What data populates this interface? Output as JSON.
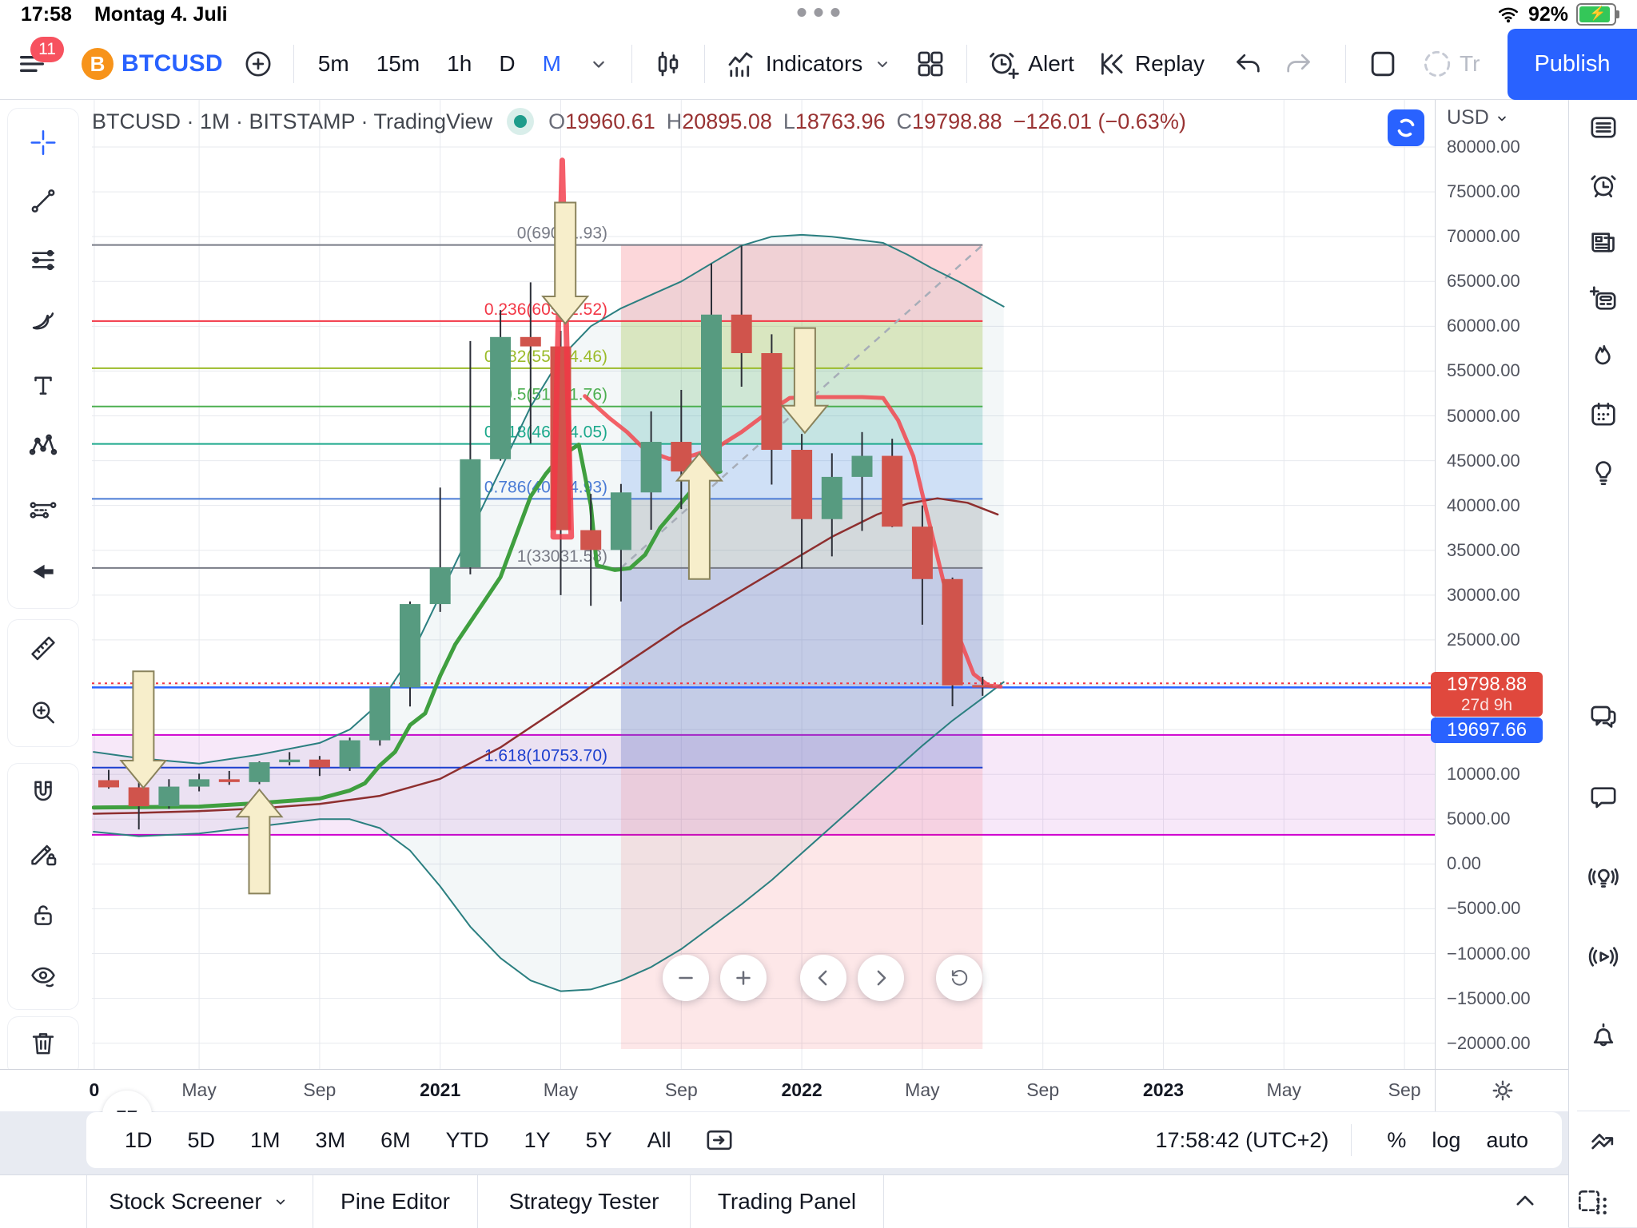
{
  "status_bar": {
    "time": "17:58",
    "date": "Montag 4. Juli",
    "battery_pct": "92%"
  },
  "toolbar": {
    "menu_badge": "11",
    "symbol": {
      "icon": "bitcoin",
      "label": "BTCUSD"
    },
    "timeframes": [
      "5m",
      "15m",
      "1h",
      "D",
      "M"
    ],
    "active_timeframe": "M",
    "indicators_label": "Indicators",
    "alert_label": "Alert",
    "replay_label": "Replay",
    "trade_label": "Tr",
    "publish_label": "Publish"
  },
  "chart_header": {
    "title": "BTCUSD · 1M · BITSTAMP · TradingView",
    "ohlc": {
      "o_label": "O",
      "o": "19960.61",
      "h_label": "H",
      "h": "20895.08",
      "l_label": "L",
      "l": "18763.96",
      "c_label": "C",
      "c": "19798.88",
      "change": "−126.01 (−0.63%)"
    }
  },
  "left_toolbar": {
    "groups": [
      [
        "crosshair",
        "trendline",
        "fiblines",
        "brush",
        "text",
        "xabcd",
        "position",
        "arrowmark"
      ],
      [
        "ruler",
        "zoomin"
      ],
      [
        "magnet",
        "pencil-lock",
        "lock",
        "eye-hide"
      ],
      [
        "trash"
      ]
    ]
  },
  "right_sidebar": {
    "group1": [
      "watchlist",
      "alarm",
      "news",
      "notes",
      "flame",
      "calendar",
      "bulb"
    ],
    "group2": [
      "chat-duo",
      "chat",
      "bulb-waves",
      "play-waves",
      "bell"
    ],
    "bottom_icon": "zigzag",
    "corner_icon": "apps"
  },
  "price_axis": {
    "currency": "USD",
    "ticks": [
      {
        "label": "80000.00",
        "price": 80000
      },
      {
        "label": "75000.00",
        "price": 75000
      },
      {
        "label": "70000.00",
        "price": 70000
      },
      {
        "label": "65000.00",
        "price": 65000
      },
      {
        "label": "60000.00",
        "price": 60000
      },
      {
        "label": "55000.00",
        "price": 55000
      },
      {
        "label": "50000.00",
        "price": 50000
      },
      {
        "label": "45000.00",
        "price": 45000
      },
      {
        "label": "40000.00",
        "price": 40000
      },
      {
        "label": "35000.00",
        "price": 35000
      },
      {
        "label": "30000.00",
        "price": 30000
      },
      {
        "label": "25000.00",
        "price": 25000
      },
      {
        "label": "10000.00",
        "price": 10000
      },
      {
        "label": "5000.00",
        "price": 5000
      },
      {
        "label": "0.00",
        "price": 0
      },
      {
        "label": "−5000.00",
        "price": -5000
      },
      {
        "label": "−10000.00",
        "price": -10000
      },
      {
        "label": "−15000.00",
        "price": -15000
      },
      {
        "label": "−20000.00",
        "price": -20000
      }
    ],
    "countdown_label": {
      "price": "19798.88",
      "countdown": "27d 9h",
      "bg": "#e0483d"
    },
    "alert_label": {
      "price": "19697.66",
      "bg": "#2962ff"
    }
  },
  "time_axis": {
    "ticks": [
      {
        "label": "0",
        "i": -0.48,
        "bold": true
      },
      {
        "label": "May",
        "i": 3
      },
      {
        "label": "Sep",
        "i": 7
      },
      {
        "label": "2021",
        "i": 11,
        "bold": true
      },
      {
        "label": "May",
        "i": 15
      },
      {
        "label": "Sep",
        "i": 19
      },
      {
        "label": "2022",
        "i": 23,
        "bold": true
      },
      {
        "label": "May",
        "i": 27
      },
      {
        "label": "Sep",
        "i": 31
      },
      {
        "label": "2023",
        "i": 35,
        "bold": true
      },
      {
        "label": "May",
        "i": 39
      },
      {
        "label": "Sep",
        "i": 43
      }
    ]
  },
  "range_toolbar": {
    "ranges": [
      "1D",
      "5D",
      "1M",
      "3M",
      "6M",
      "YTD",
      "1Y",
      "5Y",
      "All"
    ],
    "clock": "17:58:42 (UTC+2)",
    "scale_modes": [
      "%",
      "log",
      "auto"
    ]
  },
  "bottom_tabs": {
    "tabs": [
      "Stock Screener",
      "Pine Editor",
      "Strategy Tester",
      "Trading Panel"
    ],
    "widths": [
      282,
      205,
      265,
      241
    ]
  },
  "nav_controls": [
    "minus",
    "plusg",
    "chevL",
    "chevR",
    "reset"
  ],
  "chart_data": {
    "type": "candlestick",
    "symbol": "BTCUSD",
    "interval": "1M",
    "exchange": "BITSTAMP",
    "ylim": [
      -22800,
      85300
    ],
    "grid": {
      "h_step": 5000,
      "h_min": -20000,
      "h_max": 80000
    },
    "months": [
      "2020-02",
      "2020-03",
      "2020-04",
      "2020-05",
      "2020-06",
      "2020-07",
      "2020-08",
      "2020-09",
      "2020-10",
      "2020-11",
      "2020-12",
      "2021-01",
      "2021-02",
      "2021-03",
      "2021-04",
      "2021-05",
      "2021-06",
      "2021-07",
      "2021-08",
      "2021-09",
      "2021-10",
      "2021-11",
      "2021-12",
      "2022-01",
      "2022-02",
      "2022-03",
      "2022-04",
      "2022-05",
      "2022-06",
      "2022-07"
    ],
    "candles": [
      [
        9350,
        10500,
        8400,
        8550
      ],
      [
        8550,
        9200,
        3850,
        6440
      ],
      [
        6440,
        9460,
        6150,
        8630
      ],
      [
        8630,
        10070,
        8100,
        9450
      ],
      [
        9450,
        10380,
        8830,
        9140
      ],
      [
        9140,
        11450,
        8900,
        11350
      ],
      [
        11350,
        12480,
        11010,
        11650
      ],
      [
        11650,
        12050,
        9820,
        10780
      ],
      [
        10780,
        14100,
        10380,
        13800
      ],
      [
        13800,
        19500,
        13200,
        19700
      ],
      [
        19700,
        29300,
        17570,
        29000
      ],
      [
        29000,
        42000,
        28130,
        33100
      ],
      [
        33100,
        58350,
        32320,
        45160
      ],
      [
        45160,
        61800,
        45000,
        58800
      ],
      [
        58800,
        64900,
        46930,
        57750
      ],
      [
        57750,
        59500,
        30000,
        37250
      ],
      [
        37250,
        41300,
        28800,
        35040
      ],
      [
        35040,
        42400,
        29300,
        41460
      ],
      [
        41460,
        50500,
        37300,
        47100
      ],
      [
        47100,
        52900,
        39600,
        43790
      ],
      [
        43790,
        67000,
        43280,
        61300
      ],
      [
        61300,
        69000,
        53250,
        57000
      ],
      [
        57000,
        59100,
        42330,
        46210
      ],
      [
        46210,
        47980,
        32950,
        38480
      ],
      [
        38480,
        45820,
        34320,
        43190
      ],
      [
        43190,
        48190,
        37160,
        45540
      ],
      [
        45540,
        47450,
        37580,
        37640
      ],
      [
        37640,
        40000,
        26700,
        31790
      ],
      [
        31790,
        31960,
        17600,
        19925
      ],
      [
        19960.61,
        20895.08,
        18763.96,
        19798.88
      ]
    ],
    "candle_colors": {
      "up": "#579b80",
      "down": "#d0544c",
      "wick": "#2c2f38"
    },
    "fib_retracement": {
      "levels": [
        {
          "level": "0",
          "price": 69071.93,
          "label": "0(69071.93)",
          "color": "#787b86"
        },
        {
          "level": "0.236",
          "price": 60572.52,
          "label": "0.236(60572.52)",
          "color": "#f23645"
        },
        {
          "level": "0.382",
          "price": 55314.46,
          "label": "0.382(55314.46)",
          "color": "#9bbb2a"
        },
        {
          "level": "0.5",
          "price": 51051.76,
          "label": "0.5(51051.76)",
          "color": "#4caf50"
        },
        {
          "level": "0.618",
          "price": 46864.05,
          "label": "0.618(46864.05)",
          "color": "#1ca98c"
        },
        {
          "level": "0.786",
          "price": 40744.93,
          "label": "0.786(40744.93)",
          "color": "#4a7bd5"
        },
        {
          "level": "1",
          "price": 33031.58,
          "label": "1(33031.58)",
          "color": "#787b86"
        },
        {
          "level": "1.618",
          "price": 10753.7,
          "label": "1.618(10753.70)",
          "color": "#1c3fcf"
        }
      ],
      "zone": {
        "start_i": 17,
        "end_i": 29,
        "bottom_price": -20650,
        "bands": [
          {
            "from": 69071.93,
            "to": 60572.52,
            "color": "rgba(242,54,69,0.20)"
          },
          {
            "from": 60572.52,
            "to": 55314.46,
            "color": "rgba(158,190,44,0.28)"
          },
          {
            "from": 55314.46,
            "to": 51051.76,
            "color": "rgba(102,187,106,0.25)"
          },
          {
            "from": 51051.76,
            "to": 46864.05,
            "color": "rgba(38,166,154,0.22)"
          },
          {
            "from": 46864.05,
            "to": 40744.93,
            "color": "rgba(66,135,245,0.20)"
          },
          {
            "from": 40744.93,
            "to": 33031.58,
            "color": "rgba(133,142,151,0.28)"
          },
          {
            "from": 33031.58,
            "to": 10753.7,
            "color": "rgba(92,107,192,0.30)"
          },
          {
            "from": 10753.7,
            "to": -20650,
            "color": "rgba(242,54,69,0.12)"
          }
        ]
      },
      "trend_dashed": {
        "from": [
          17,
          33031.58
        ],
        "to": [
          29,
          69071.93
        ],
        "color": "#a7adb8"
      }
    },
    "channel": {
      "top": 14400,
      "bottom": 3250,
      "line_color": "#cf00cf",
      "fill": "rgba(205,115,220,0.16)"
    },
    "price_lines": {
      "current": {
        "price": 19798.88,
        "style": "dotted",
        "color": "#f23645"
      },
      "alert": {
        "price": 19697.66,
        "style": "solid",
        "color": "#2962ff"
      }
    },
    "overlays": [
      {
        "name": "upper-band",
        "color": "#2b7f80",
        "width": 2,
        "points": [
          [
            -0.5,
            12500
          ],
          [
            1,
            11800
          ],
          [
            3,
            11200
          ],
          [
            5,
            12200
          ],
          [
            7,
            13500
          ],
          [
            8,
            15000
          ],
          [
            9,
            18000
          ],
          [
            10,
            23000
          ],
          [
            11,
            30000
          ],
          [
            12,
            37000
          ],
          [
            13,
            44000
          ],
          [
            14,
            51000
          ],
          [
            15,
            56500
          ],
          [
            16,
            60000
          ],
          [
            17,
            62000
          ],
          [
            18,
            63500
          ],
          [
            19,
            65000
          ],
          [
            20,
            67000
          ],
          [
            21,
            69000
          ],
          [
            22,
            70000
          ],
          [
            23,
            70200
          ],
          [
            24,
            70000
          ],
          [
            25,
            69600
          ],
          [
            25.7,
            69300
          ],
          [
            26.5,
            68000
          ],
          [
            27.3,
            66500
          ],
          [
            28.2,
            65000
          ],
          [
            29,
            63500
          ],
          [
            29.7,
            62200
          ]
        ]
      },
      {
        "name": "lower-band",
        "color": "#2b7f80",
        "width": 2,
        "points": [
          [
            -0.5,
            3600
          ],
          [
            1,
            3100
          ],
          [
            3,
            3400
          ],
          [
            5,
            4200
          ],
          [
            7,
            5000
          ],
          [
            8,
            5000
          ],
          [
            9,
            4000
          ],
          [
            10,
            1500
          ],
          [
            11,
            -2500
          ],
          [
            12,
            -7000
          ],
          [
            13,
            -10500
          ],
          [
            14,
            -13000
          ],
          [
            15,
            -14200
          ],
          [
            16,
            -14000
          ],
          [
            17,
            -13000
          ],
          [
            18,
            -11500
          ],
          [
            19,
            -9500
          ],
          [
            20,
            -7000
          ],
          [
            21,
            -4500
          ],
          [
            22,
            -1800
          ],
          [
            23,
            1200
          ],
          [
            24,
            4200
          ],
          [
            25,
            7200
          ],
          [
            26,
            10200
          ],
          [
            27,
            13200
          ],
          [
            28,
            16000
          ],
          [
            29,
            18500
          ],
          [
            29.7,
            20300
          ]
        ]
      },
      {
        "name": "slow-ma",
        "color": "#8e2f2f",
        "width": 2.5,
        "points": [
          [
            -0.5,
            5600
          ],
          [
            1,
            5700
          ],
          [
            3,
            5900
          ],
          [
            5,
            6200
          ],
          [
            7,
            6700
          ],
          [
            9,
            7600
          ],
          [
            11,
            9500
          ],
          [
            13,
            13000
          ],
          [
            15,
            17500
          ],
          [
            17,
            22000
          ],
          [
            19,
            26500
          ],
          [
            21,
            30500
          ],
          [
            22.5,
            33500
          ],
          [
            24,
            36500
          ],
          [
            25.5,
            39000
          ],
          [
            26.5,
            40200
          ],
          [
            27.5,
            40800
          ],
          [
            28.5,
            40300
          ],
          [
            29.5,
            39000
          ]
        ]
      },
      {
        "name": "trail-up",
        "color": "#3f9f3f",
        "width": 5,
        "points": [
          [
            -0.5,
            6300
          ],
          [
            3,
            6400
          ],
          [
            5,
            6800
          ],
          [
            7,
            7300
          ],
          [
            8,
            8200
          ],
          [
            8.5,
            9000
          ],
          [
            9,
            11000
          ],
          [
            9.5,
            12500
          ],
          [
            10,
            15500
          ],
          [
            10.5,
            16800
          ],
          [
            11,
            21000
          ],
          [
            11.5,
            24500
          ],
          [
            12,
            27000
          ],
          [
            12.5,
            29500
          ],
          [
            13,
            32000
          ],
          [
            13.5,
            36500
          ],
          [
            14,
            41000
          ],
          [
            14.5,
            43500
          ],
          [
            15,
            45500
          ],
          [
            15.6,
            46800
          ],
          [
            16,
            40000
          ],
          [
            16.2,
            33300
          ],
          [
            16.8,
            32800
          ],
          [
            17.3,
            33000
          ],
          [
            17.8,
            34500
          ],
          [
            18.3,
            37500
          ],
          [
            18.8,
            39500
          ],
          [
            19.3,
            41500
          ],
          [
            19.8,
            43300
          ],
          [
            20.3,
            43800
          ]
        ]
      },
      {
        "name": "trail-down",
        "color": "#f2464e",
        "width": 5,
        "opacity": 0.85,
        "points": [
          [
            15.8,
            52200
          ],
          [
            16.6,
            49800
          ],
          [
            17.2,
            48200
          ],
          [
            17.8,
            46200
          ],
          [
            18.6,
            45200
          ],
          [
            19.4,
            45600
          ],
          [
            20.2,
            46500
          ],
          [
            21,
            48200
          ],
          [
            21.8,
            50200
          ],
          [
            22.6,
            52000
          ],
          [
            23.4,
            52100
          ],
          [
            25,
            52100
          ],
          [
            25.7,
            52000
          ],
          [
            26.2,
            49500
          ],
          [
            26.7,
            45500
          ],
          [
            27.2,
            38500
          ],
          [
            27.7,
            31500
          ],
          [
            28.2,
            25500
          ],
          [
            28.7,
            21200
          ],
          [
            29.2,
            19900
          ],
          [
            29.6,
            19800
          ]
        ]
      }
    ],
    "spike": {
      "color": "rgba(242,54,69,0.8)",
      "points": [
        [
          14.75,
          36500
        ],
        [
          15.35,
          36500
        ],
        [
          15.05,
          78500
        ]
      ]
    },
    "arrows": [
      {
        "i": 1.15,
        "dir": "down",
        "tip": 8500,
        "tail": 21500
      },
      {
        "i": 5.0,
        "dir": "up",
        "tip": 8300,
        "tail": -3300
      },
      {
        "i": 19.6,
        "dir": "up",
        "tip": 45800,
        "tail": 31800
      },
      {
        "i": 15.15,
        "dir": "down",
        "tip": 60300,
        "tail": 73800
      },
      {
        "i": 23.1,
        "dir": "down",
        "tip": 48100,
        "tail": 59800
      }
    ],
    "arrow_style": {
      "fill": "#f7eecb",
      "stroke": "#8a835c"
    }
  }
}
